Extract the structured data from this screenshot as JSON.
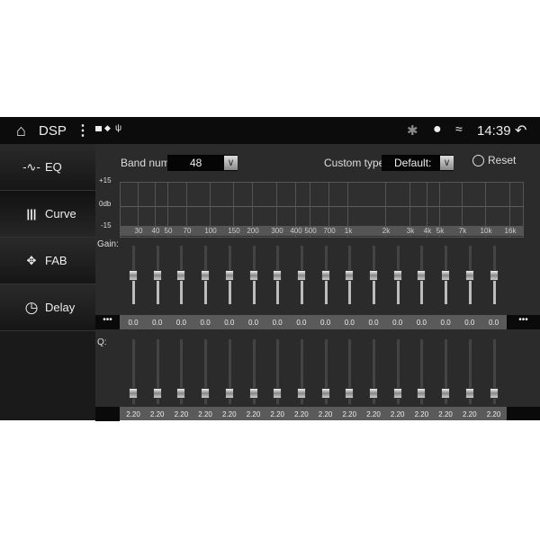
{
  "topbar": {
    "title": "DSP",
    "time": "14:39",
    "icons": [
      "home-icon",
      "more-vertical-icon",
      "image-icon",
      "shield-icon",
      "usb-icon",
      "bluetooth-icon",
      "location-icon",
      "wifi-icon",
      "back-icon"
    ]
  },
  "sidebar": {
    "items": [
      {
        "label": "EQ",
        "icon": "waveform-icon"
      },
      {
        "label": "Curve",
        "icon": "sliders-icon",
        "selected": true
      },
      {
        "label": "FAB",
        "icon": "fader-balance-icon"
      },
      {
        "label": "Delay",
        "icon": "clock-icon"
      }
    ]
  },
  "controls": {
    "band_num_label": "Band num:",
    "band_num_value": "48",
    "custom_type_label": "Custom type:",
    "custom_type_value": "Default:",
    "reset_label": "Reset"
  },
  "graph": {
    "y_top": "+15",
    "y_mid": "0db",
    "y_bottom": "-15",
    "freq_labels": [
      "30",
      "40",
      "50",
      "70",
      "100",
      "150",
      "200",
      "300",
      "400",
      "500",
      "700",
      "1k",
      "2k",
      "3k",
      "4k",
      "5k",
      "7k",
      "10k",
      "16k"
    ],
    "curve_color": "#2a6f8a"
  },
  "gain": {
    "label": "Gain:",
    "values": [
      "0.0",
      "0.0",
      "0.0",
      "0.0",
      "0.0",
      "0.0",
      "0.0",
      "0.0",
      "0.0",
      "0.0",
      "0.0",
      "0.0",
      "0.0",
      "0.0",
      "0.0",
      "0.0"
    ],
    "more": "•••"
  },
  "q": {
    "label": "Q:",
    "values": [
      "2.20",
      "2.20",
      "2.20",
      "2.20",
      "2.20",
      "2.20",
      "2.20",
      "2.20",
      "2.20",
      "2.20",
      "2.20",
      "2.20",
      "2.20",
      "2.20",
      "2.20",
      "2.20"
    ]
  }
}
